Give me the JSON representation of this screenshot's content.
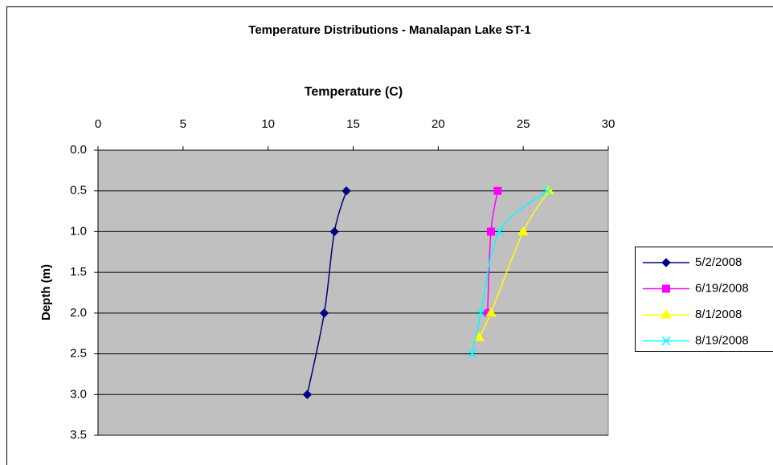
{
  "chart_data": {
    "type": "line",
    "title": "Temperature Distributions - Manalapan Lake ST-1",
    "x_label": "Temperature (C)",
    "y_label": "Depth (m)",
    "xlim": [
      0,
      30
    ],
    "xticks": [
      0,
      5,
      10,
      15,
      20,
      25,
      30
    ],
    "ylim": [
      0,
      3.5
    ],
    "yticks": [
      {
        "value": 0,
        "label": "0.0"
      },
      0.5,
      {
        "value": 1,
        "label": "1.0"
      },
      1.5,
      {
        "value": 2,
        "label": "2.0"
      },
      2.5,
      {
        "value": 3,
        "label": "3.0"
      },
      3.5
    ],
    "y_inverted": true,
    "x_axis_position": "top",
    "grid": true,
    "smooth": true,
    "legend": "right",
    "plot_background": "#c0c0c0",
    "series": [
      {
        "name": "5/2/2008",
        "color": "#000080",
        "marker": "diamond",
        "x": [
          14.6,
          13.9,
          13.3,
          12.3
        ],
        "values": [
          0.5,
          1.0,
          2.0,
          3.0
        ]
      },
      {
        "name": "6/19/2008",
        "color": "#ff00ff",
        "marker": "square",
        "x": [
          23.5,
          23.1,
          22.9
        ],
        "values": [
          0.5,
          1.0,
          2.0
        ]
      },
      {
        "name": "8/1/2008",
        "color": "#ffff00",
        "marker": "triangle",
        "x": [
          26.5,
          25.0,
          23.1,
          22.4
        ],
        "values": [
          0.5,
          1.0,
          2.0,
          2.3
        ]
      },
      {
        "name": "8/19/2008",
        "color": "#00ffff",
        "marker": "cross",
        "x": [
          26.4,
          23.6,
          22.5,
          22.0
        ],
        "values": [
          0.5,
          1.0,
          2.0,
          2.5
        ]
      }
    ]
  }
}
